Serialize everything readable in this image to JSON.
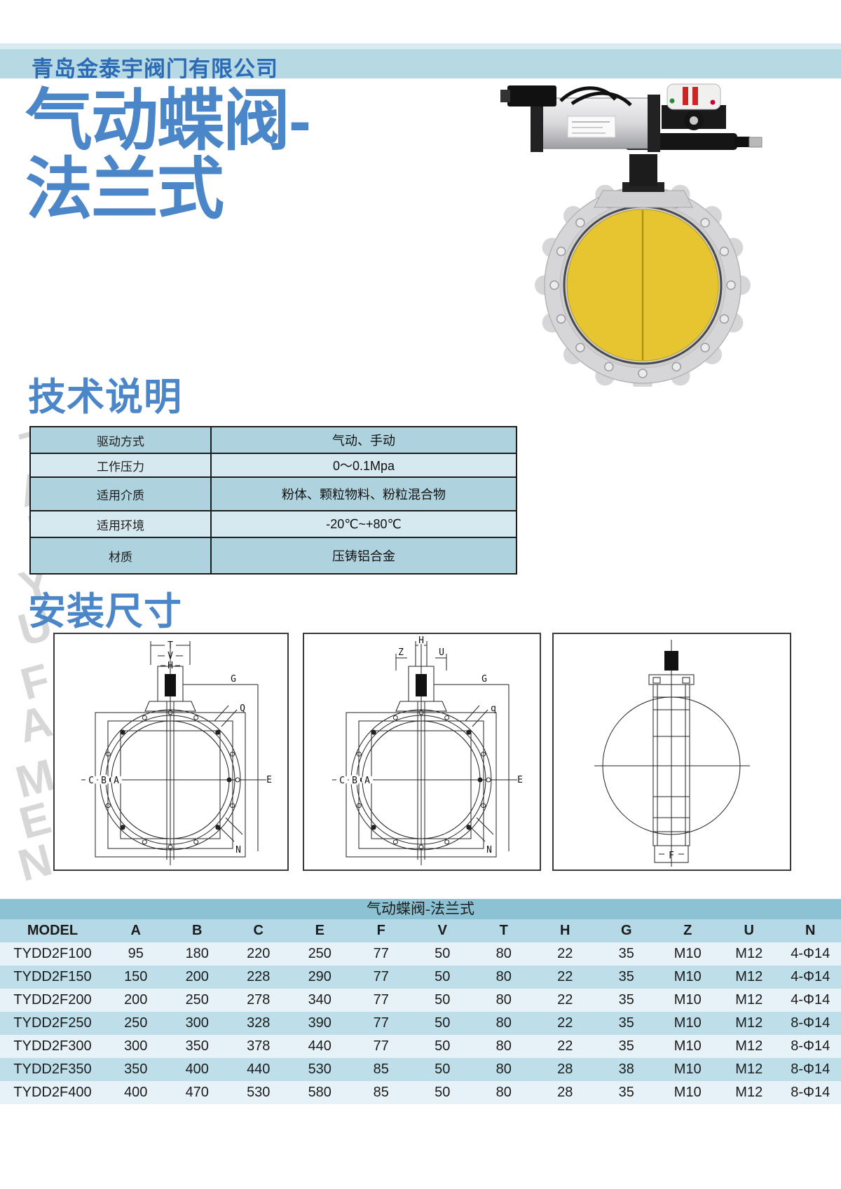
{
  "page": {
    "company": "青岛金泰宇阀门有限公司",
    "title_line1": "气动蝶阀-",
    "title_line2": "法兰式",
    "watermark": "TAI YU FA MEN",
    "section1": "技术说明",
    "section2": "安装尺寸"
  },
  "colors": {
    "header_band": "#b7d9e4",
    "title_blue": "#4a86c8",
    "company_blue": "#2b6ab5",
    "spec_row_dark": "#aed3df",
    "spec_row_light": "#d7e9f0",
    "dim_title_band": "#8cc2d4",
    "dim_header_row": "#b5d9e6",
    "dim_row_light": "#e6f2f8",
    "dim_row_dark": "#bedfea",
    "valve_disc_yellow": "#e7c531",
    "flange_gray": "#d6d6d8"
  },
  "spec_table": {
    "rows": [
      {
        "label": "驱动方式",
        "value": "气动、手动"
      },
      {
        "label": "工作压力",
        "value": "0～0.1Mpa"
      },
      {
        "label": "适用介质",
        "value": "粉体、颗粒物料、粉粒混合物"
      },
      {
        "label": "适用环境",
        "value": "-20℃~+80℃"
      },
      {
        "label": "材质",
        "value": "压铸铝合金"
      }
    ]
  },
  "diagrams": {
    "d1": {
      "labels": {
        "t": "T",
        "v": "V",
        "h": "H",
        "g": "G",
        "c": "C",
        "b": "B",
        "a": "A",
        "e": "E",
        "q": "Q",
        "n": "N"
      }
    },
    "d2": {
      "labels": {
        "z": "Z",
        "h": "H",
        "u": "U",
        "g": "G",
        "c": "C",
        "b": "B",
        "a": "A",
        "e": "E",
        "q": "q",
        "n": "N"
      }
    },
    "d3": {
      "labels": {
        "f": "F"
      }
    }
  },
  "dim_table": {
    "title": "气动蝶阀-法兰式",
    "columns": [
      "MODEL",
      "A",
      "B",
      "C",
      "E",
      "F",
      "V",
      "T",
      "H",
      "G",
      "Z",
      "U",
      "N"
    ],
    "rows": [
      [
        "TYDD2F100",
        "95",
        "180",
        "220",
        "250",
        "77",
        "50",
        "80",
        "22",
        "35",
        "M10",
        "M12",
        "4-Φ14"
      ],
      [
        "TYDD2F150",
        "150",
        "200",
        "228",
        "290",
        "77",
        "50",
        "80",
        "22",
        "35",
        "M10",
        "M12",
        "4-Φ14"
      ],
      [
        "TYDD2F200",
        "200",
        "250",
        "278",
        "340",
        "77",
        "50",
        "80",
        "22",
        "35",
        "M10",
        "M12",
        "4-Φ14"
      ],
      [
        "TYDD2F250",
        "250",
        "300",
        "328",
        "390",
        "77",
        "50",
        "80",
        "22",
        "35",
        "M10",
        "M12",
        "8-Φ14"
      ],
      [
        "TYDD2F300",
        "300",
        "350",
        "378",
        "440",
        "77",
        "50",
        "80",
        "22",
        "35",
        "M10",
        "M12",
        "8-Φ14"
      ],
      [
        "TYDD2F350",
        "350",
        "400",
        "440",
        "530",
        "85",
        "50",
        "80",
        "28",
        "38",
        "M10",
        "M12",
        "8-Φ14"
      ],
      [
        "TYDD2F400",
        "400",
        "470",
        "530",
        "580",
        "85",
        "50",
        "80",
        "28",
        "35",
        "M10",
        "M12",
        "8-Φ14"
      ]
    ]
  }
}
